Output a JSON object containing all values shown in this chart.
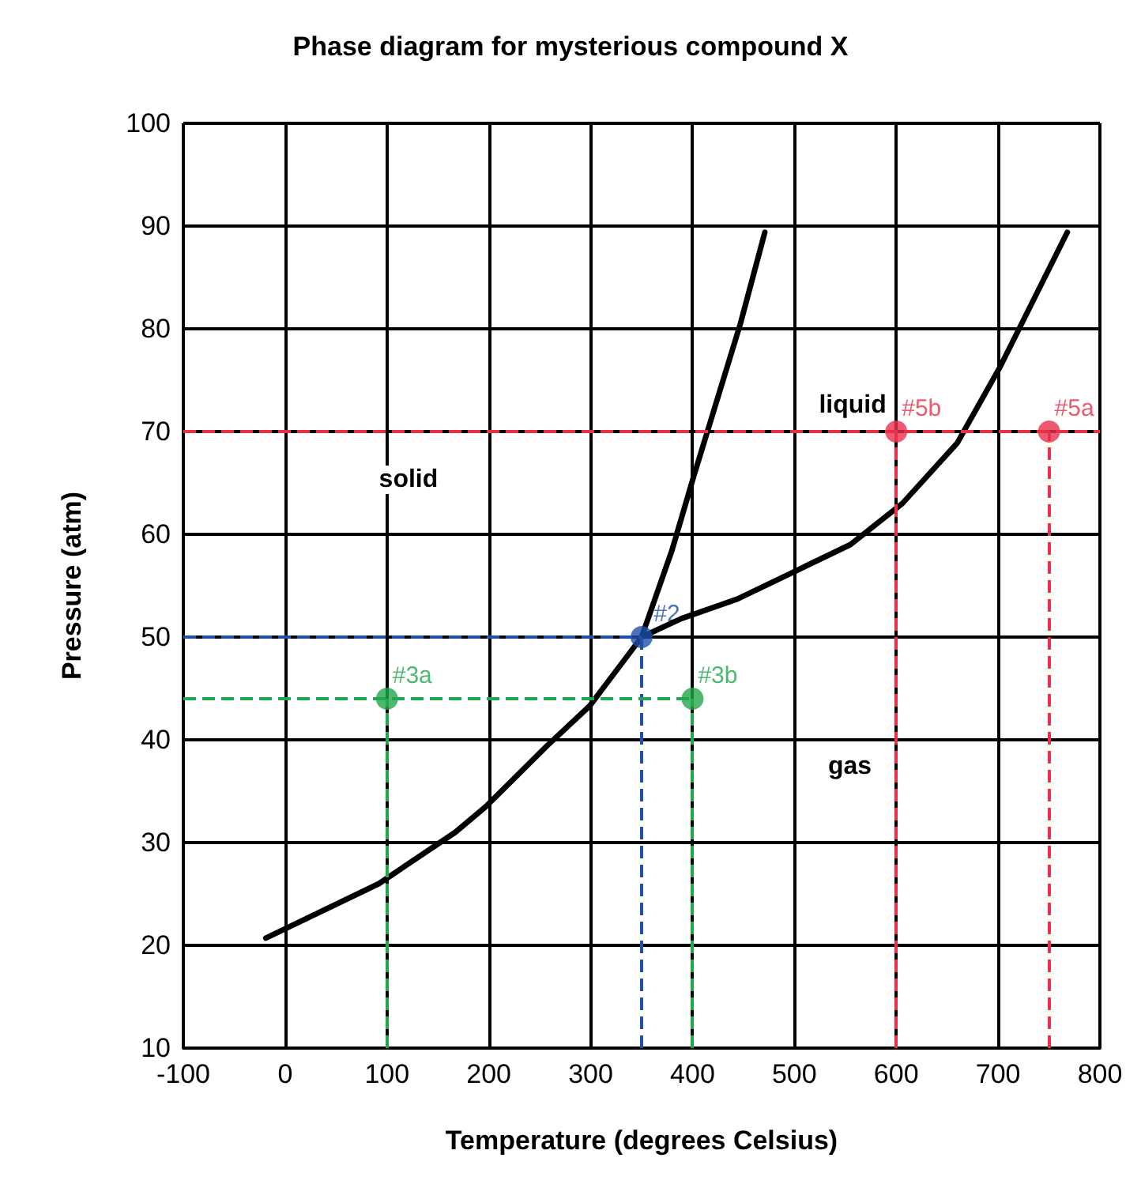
{
  "chart_data": {
    "type": "line",
    "title": "Phase diagram for mysterious compound X",
    "xlabel": "Temperature (degrees Celsius)",
    "ylabel": "Pressure (atm)",
    "xlim": [
      -100,
      800
    ],
    "xticks": [
      -100,
      0,
      100,
      200,
      300,
      400,
      500,
      600,
      700,
      800
    ],
    "ylim": [
      10,
      100
    ],
    "yticks": [
      10,
      20,
      30,
      40,
      50,
      60,
      70,
      80,
      90,
      100
    ],
    "grid": true,
    "series": [
      {
        "color": "#000000",
        "x": [
          -19,
          92,
          167,
          197,
          257,
          299,
          350
        ],
        "values": [
          20.7,
          26,
          31,
          33.5,
          39.4,
          43.3,
          50
        ]
      },
      {
        "color": "#000000",
        "x": [
          350,
          380,
          401,
          447,
          471
        ],
        "values": [
          50,
          58.5,
          65.6,
          80.5,
          89.4
        ]
      },
      {
        "color": "#000000",
        "x": [
          350,
          389,
          444,
          555,
          606,
          660,
          702,
          768
        ],
        "values": [
          50,
          51.8,
          53.7,
          59,
          63,
          68.9,
          76.3,
          89.4
        ]
      },
      {
        "type": "scatter",
        "marker": "circle",
        "color": "#1f4fa8",
        "x": [
          350
        ],
        "values": [
          50
        ],
        "line_style": "dashed"
      },
      {
        "type": "scatter",
        "marker": "circle",
        "color": "#22a84a",
        "x": [
          100,
          400
        ],
        "values": [
          44,
          44
        ],
        "line_style": "dashed"
      },
      {
        "type": "scatter",
        "marker": "circle",
        "color": "#e8304a",
        "x": [
          600,
          750
        ],
        "values": [
          70,
          70
        ],
        "line_style": "dashed"
      }
    ],
    "ref_lines": [
      {
        "axis": "y",
        "value": 70,
        "color": "#e8304a",
        "line_style": "dashed"
      }
    ],
    "annotations": [
      "solid",
      "liquid",
      "gas",
      {
        "text": "#2",
        "x": 350,
        "y": 50
      },
      {
        "text": "#3a",
        "x": 100,
        "y": 44
      },
      {
        "text": "#3b",
        "x": 400,
        "y": 44
      },
      {
        "text": "#5b",
        "x": 600,
        "y": 70
      },
      {
        "text": "#5a",
        "x": 750,
        "y": 70
      }
    ]
  }
}
